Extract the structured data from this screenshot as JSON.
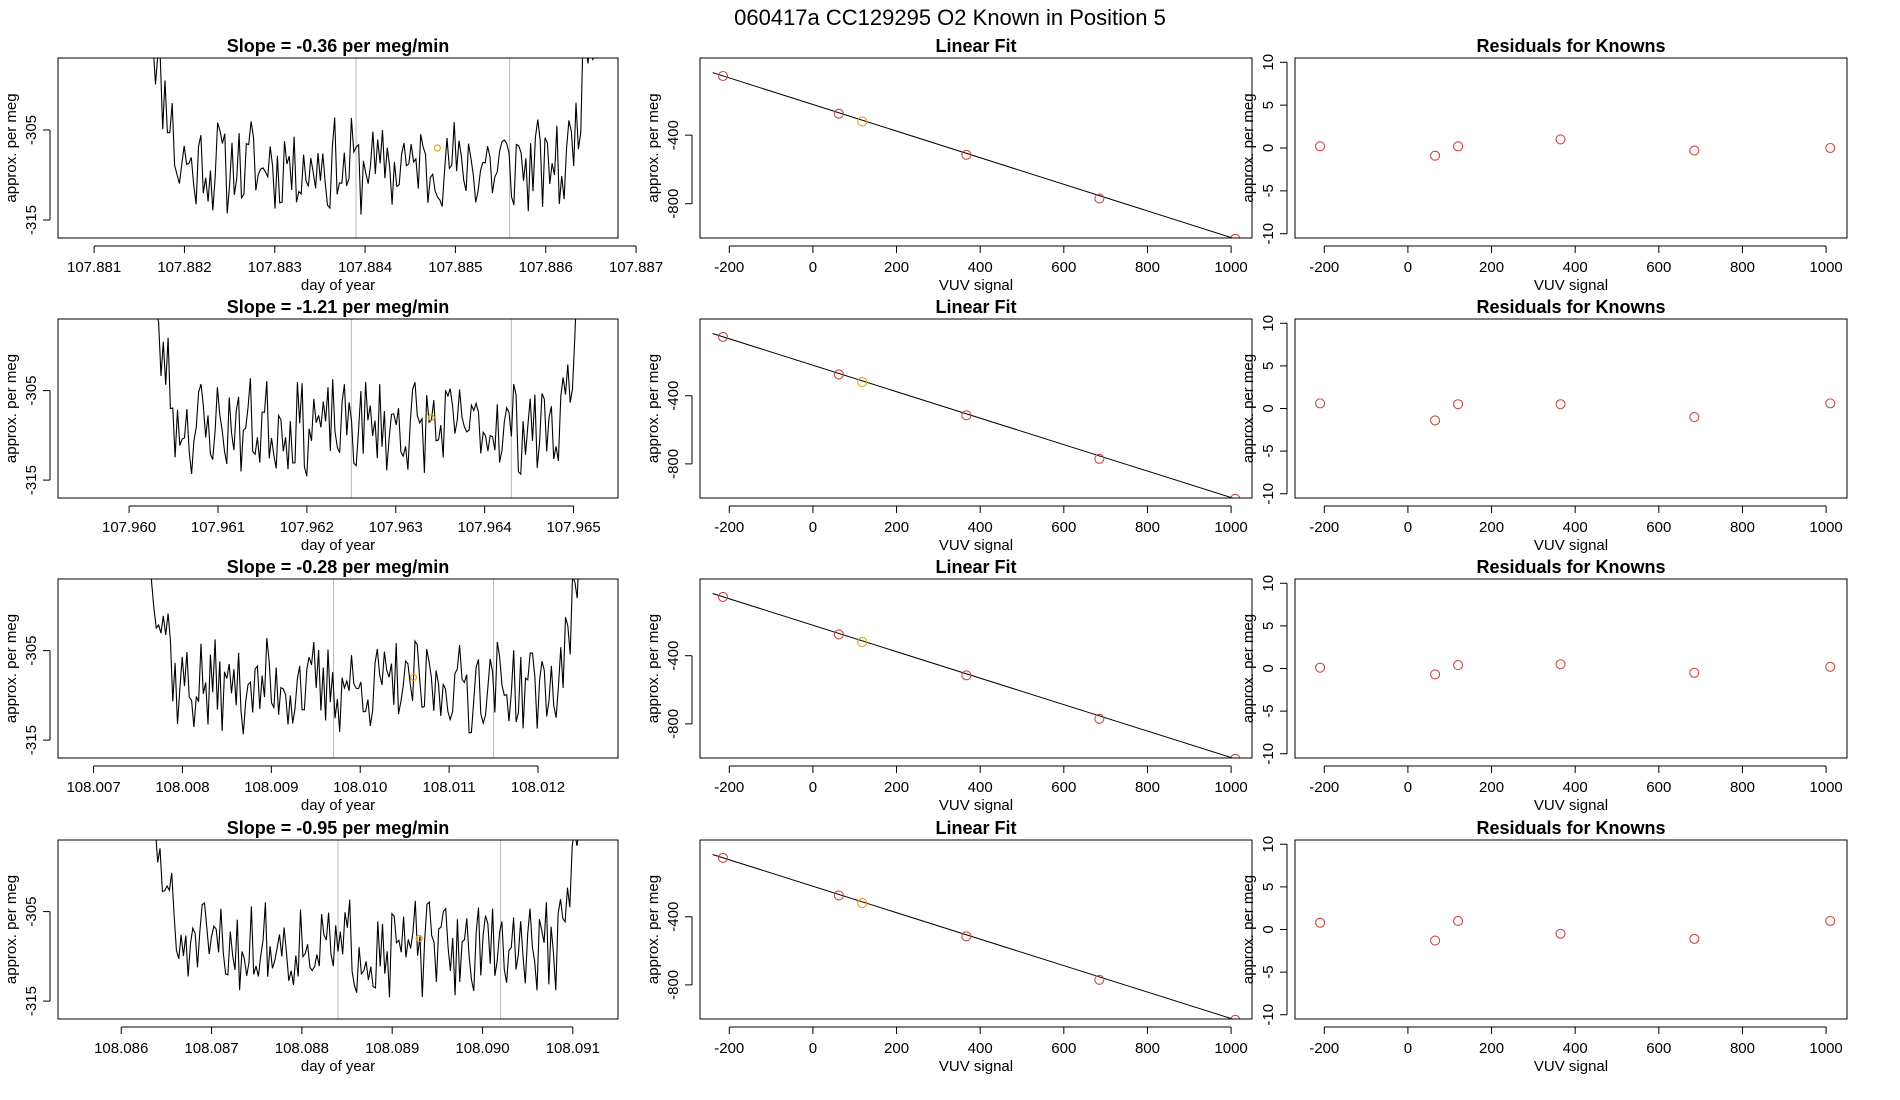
{
  "figure": {
    "title": "060417a      CC129295    O2 Known in Position  5",
    "colors": {
      "line": "#000000",
      "known": "#cc4444",
      "highlight": "#e0a020",
      "vline": "#bbbbbb"
    }
  },
  "chart_data": [
    {
      "type": "line",
      "title": "Slope =  -0.36  per meg/min",
      "xlabel": "day of year",
      "ylabel": "approx. per meg",
      "xlim": [
        107.8806,
        107.8868
      ],
      "ylim": [
        -317,
        -297
      ],
      "xticks": [
        "107.881",
        "107.882",
        "107.883",
        "107.884",
        "107.885",
        "107.886",
        "107.887"
      ],
      "yticks": [
        "-305",
        "-315"
      ],
      "series_start": 107.8816,
      "series_end": 107.8866,
      "series_points": 190,
      "seed": 11,
      "vlines": [
        107.8839,
        107.8856
      ],
      "highlight_point": {
        "x": 107.8848,
        "y": -307
      }
    },
    {
      "type": "scatter",
      "title": "Linear Fit",
      "xlabel": "VUV signal",
      "ylabel": "approx. per meg",
      "xlim": [
        -270,
        1050
      ],
      "ylim": [
        -1000,
        50
      ],
      "xticks": [
        "-200",
        "0",
        "200",
        "400",
        "600",
        "800",
        "1000"
      ],
      "yticks": [
        "-400",
        "-800"
      ],
      "x": [
        -215,
        62,
        118,
        367,
        685,
        1010
      ],
      "y": [
        -55,
        -275,
        -320,
        -515,
        -770,
        -1005
      ],
      "highlight_index": 2,
      "fit_line": {
        "x": [
          -240,
          1010
        ],
        "y": [
          -35,
          -1005
        ]
      }
    },
    {
      "type": "scatter",
      "title": "Residuals for Knowns",
      "xlabel": "VUV signal",
      "ylabel": "approx. per meg",
      "xlim": [
        -270,
        1050
      ],
      "ylim": [
        -10.5,
        10.5
      ],
      "xticks": [
        "-200",
        "0",
        "200",
        "400",
        "600",
        "800",
        "1000"
      ],
      "yticks": [
        "10",
        "5",
        "0",
        "-5",
        "-10"
      ],
      "x": [
        -210,
        65,
        120,
        365,
        685,
        1010
      ],
      "y": [
        0.2,
        -0.9,
        0.2,
        1.0,
        -0.3,
        0.0
      ]
    },
    {
      "type": "line",
      "title": "Slope =  -1.21  per meg/min",
      "xlabel": "day of year",
      "ylabel": "approx. per meg",
      "xlim": [
        107.9592,
        107.9655
      ],
      "ylim": [
        -317,
        -297
      ],
      "xticks": [
        "107.960",
        "107.961",
        "107.962",
        "107.963",
        "107.964",
        "107.965"
      ],
      "yticks": [
        "-305",
        "-315"
      ],
      "series_start": 107.9602,
      "series_end": 107.9652,
      "series_points": 190,
      "seed": 23,
      "vlines": [
        107.9625,
        107.9643
      ],
      "highlight_point": {
        "x": 107.9634,
        "y": -308
      }
    },
    {
      "type": "scatter",
      "title": "Linear Fit",
      "xlabel": "VUV signal",
      "ylabel": "approx. per meg",
      "xlim": [
        -270,
        1050
      ],
      "ylim": [
        -1000,
        50
      ],
      "xticks": [
        "-200",
        "0",
        "200",
        "400",
        "600",
        "800",
        "1000"
      ],
      "yticks": [
        "-400",
        "-800"
      ],
      "x": [
        -215,
        62,
        118,
        367,
        685,
        1010
      ],
      "y": [
        -55,
        -275,
        -320,
        -515,
        -770,
        -1005
      ],
      "highlight_index": 2,
      "fit_line": {
        "x": [
          -240,
          1010
        ],
        "y": [
          -35,
          -1005
        ]
      }
    },
    {
      "type": "scatter",
      "title": "Residuals for Knowns",
      "xlabel": "VUV signal",
      "ylabel": "approx. per meg",
      "xlim": [
        -270,
        1050
      ],
      "ylim": [
        -10.5,
        10.5
      ],
      "xticks": [
        "-200",
        "0",
        "200",
        "400",
        "600",
        "800",
        "1000"
      ],
      "yticks": [
        "10",
        "5",
        "0",
        "-5",
        "-10"
      ],
      "x": [
        -210,
        65,
        120,
        365,
        685,
        1010
      ],
      "y": [
        0.6,
        -1.4,
        0.5,
        0.5,
        -1.0,
        0.6
      ]
    },
    {
      "type": "line",
      "title": "Slope =  -0.28  per meg/min",
      "xlabel": "day of year",
      "ylabel": "approx. per meg",
      "xlim": [
        108.0066,
        108.0129
      ],
      "ylim": [
        -317,
        -297
      ],
      "xticks": [
        "108.007",
        "108.008",
        "108.009",
        "108.010",
        "108.011",
        "108.012"
      ],
      "yticks": [
        "-305",
        "-315"
      ],
      "series_start": 108.0076,
      "series_end": 108.0126,
      "series_points": 190,
      "seed": 37,
      "vlines": [
        108.0097,
        108.0115
      ],
      "highlight_point": {
        "x": 108.0106,
        "y": -308
      }
    },
    {
      "type": "scatter",
      "title": "Linear Fit",
      "xlabel": "VUV signal",
      "ylabel": "approx. per meg",
      "xlim": [
        -270,
        1050
      ],
      "ylim": [
        -1000,
        50
      ],
      "xticks": [
        "-200",
        "0",
        "200",
        "400",
        "600",
        "800",
        "1000"
      ],
      "yticks": [
        "-400",
        "-800"
      ],
      "x": [
        -215,
        62,
        118,
        367,
        685,
        1010
      ],
      "y": [
        -55,
        -275,
        -320,
        -515,
        -770,
        -1005
      ],
      "highlight_index": 2,
      "fit_line": {
        "x": [
          -240,
          1010
        ],
        "y": [
          -35,
          -1005
        ]
      }
    },
    {
      "type": "scatter",
      "title": "Residuals for Knowns",
      "xlabel": "VUV signal",
      "ylabel": "approx. per meg",
      "xlim": [
        -270,
        1050
      ],
      "ylim": [
        -10.5,
        10.5
      ],
      "xticks": [
        "-200",
        "0",
        "200",
        "400",
        "600",
        "800",
        "1000"
      ],
      "yticks": [
        "10",
        "5",
        "0",
        "-5",
        "-10"
      ],
      "x": [
        -210,
        65,
        120,
        365,
        685,
        1010
      ],
      "y": [
        0.1,
        -0.7,
        0.4,
        0.5,
        -0.5,
        0.2
      ]
    },
    {
      "type": "line",
      "title": "Slope =  -0.95  per meg/min",
      "xlabel": "day of year",
      "ylabel": "approx. per meg",
      "xlim": [
        108.0853,
        108.0915
      ],
      "ylim": [
        -317,
        -297
      ],
      "xticks": [
        "108.086",
        "108.087",
        "108.088",
        "108.089",
        "108.090",
        "108.091"
      ],
      "yticks": [
        "-305",
        "-315"
      ],
      "series_start": 108.0863,
      "series_end": 108.0912,
      "series_points": 190,
      "seed": 51,
      "vlines": [
        108.0884,
        108.0902
      ],
      "highlight_point": {
        "x": 108.0893,
        "y": -308
      }
    },
    {
      "type": "scatter",
      "title": "Linear Fit",
      "xlabel": "VUV signal",
      "ylabel": "approx. per meg",
      "xlim": [
        -270,
        1050
      ],
      "ylim": [
        -1000,
        50
      ],
      "xticks": [
        "-200",
        "0",
        "200",
        "400",
        "600",
        "800",
        "1000"
      ],
      "yticks": [
        "-400",
        "-800"
      ],
      "x": [
        -215,
        62,
        118,
        367,
        685,
        1010
      ],
      "y": [
        -55,
        -275,
        -320,
        -515,
        -770,
        -1005
      ],
      "highlight_index": 2,
      "fit_line": {
        "x": [
          -240,
          1010
        ],
        "y": [
          -35,
          -1005
        ]
      }
    },
    {
      "type": "scatter",
      "title": "Residuals for Knowns",
      "xlabel": "VUV signal",
      "ylabel": "approx. per meg",
      "xlim": [
        -270,
        1050
      ],
      "ylim": [
        -10.5,
        10.5
      ],
      "xticks": [
        "-200",
        "0",
        "200",
        "400",
        "600",
        "800",
        "1000"
      ],
      "yticks": [
        "10",
        "5",
        "0",
        "-5",
        "-10"
      ],
      "x": [
        -210,
        65,
        120,
        365,
        685,
        1010
      ],
      "y": [
        0.8,
        -1.3,
        1.0,
        -0.5,
        -1.1,
        1.0
      ]
    }
  ]
}
